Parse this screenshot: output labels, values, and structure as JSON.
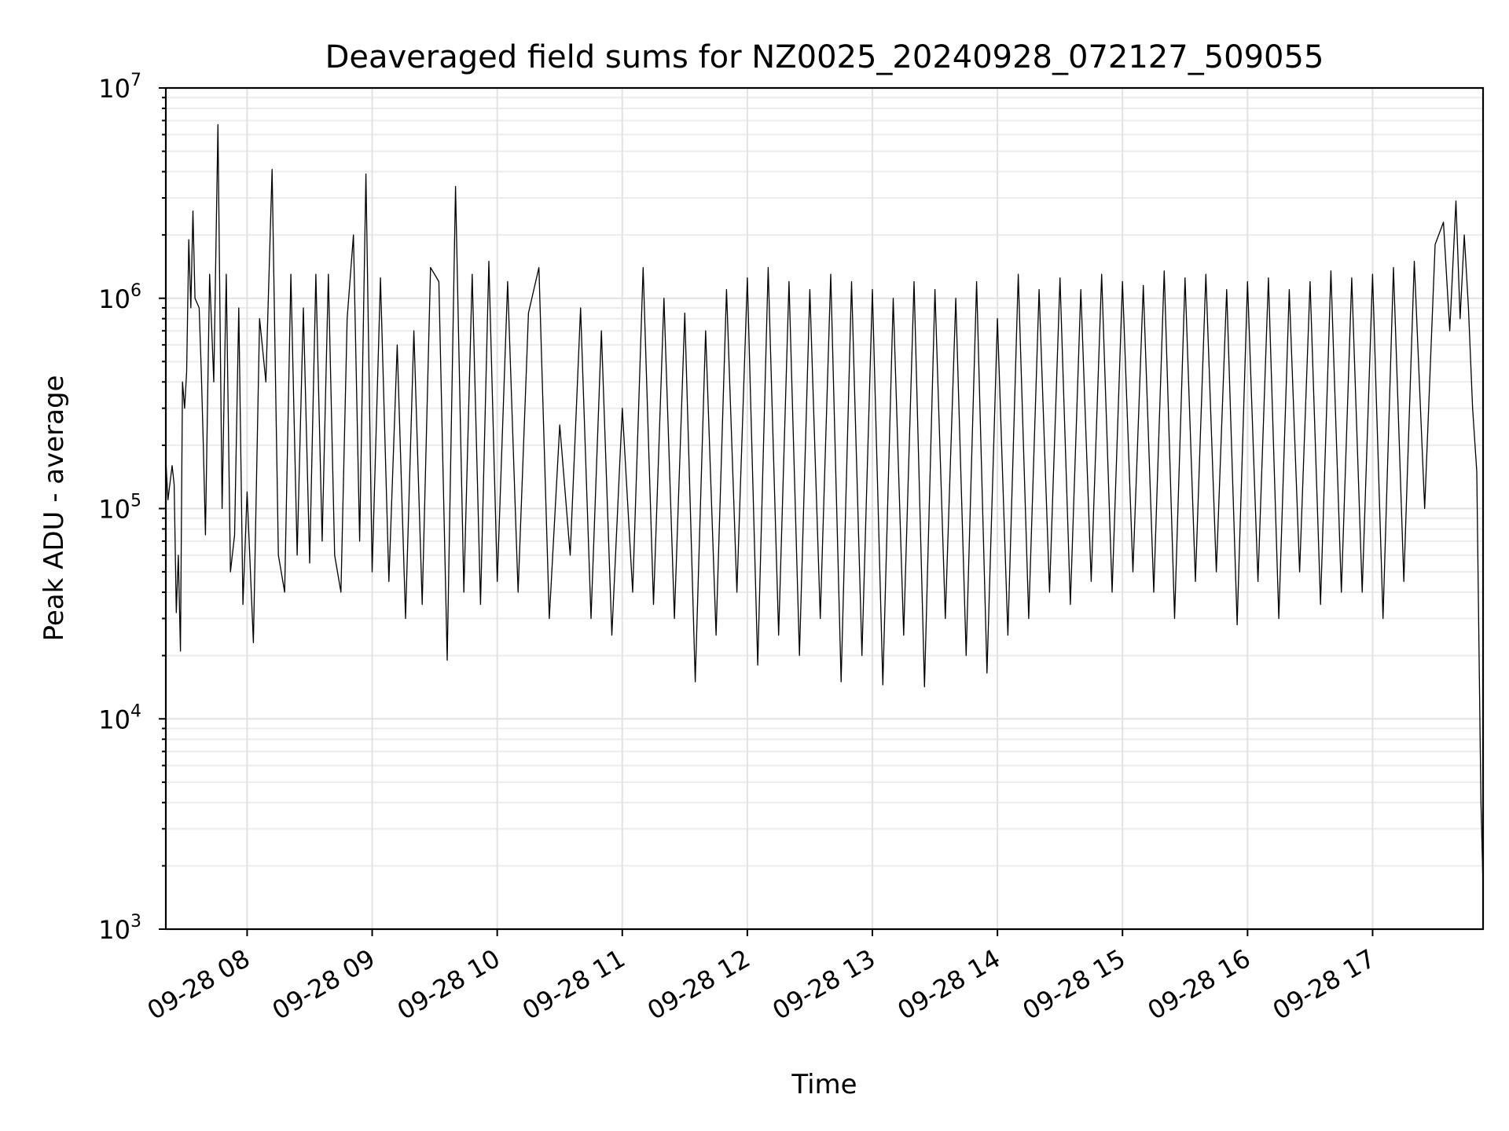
{
  "chart_data": {
    "type": "line",
    "title": "Deaveraged field sums for NZ0025_20240928_072127_509055",
    "xlabel": "Time",
    "ylabel": "Peak ADU - average",
    "yscale": "log",
    "ylim": [
      1000,
      10000000
    ],
    "xlim": [
      "2024-09-28 07:21",
      "2024-09-28 17:53"
    ],
    "grid": true,
    "legend": "none",
    "line_color": "#000000",
    "yticks": [
      {
        "value": 1000,
        "base": "10",
        "exp": "3"
      },
      {
        "value": 10000,
        "base": "10",
        "exp": "4"
      },
      {
        "value": 100000,
        "base": "10",
        "exp": "5"
      },
      {
        "value": 1000000,
        "base": "10",
        "exp": "6"
      },
      {
        "value": 10000000,
        "base": "10",
        "exp": "7"
      }
    ],
    "xticks": [
      {
        "time": "2024-09-28 08:00",
        "label": "09-28 08"
      },
      {
        "time": "2024-09-28 09:00",
        "label": "09-28 09"
      },
      {
        "time": "2024-09-28 10:00",
        "label": "09-28 10"
      },
      {
        "time": "2024-09-28 11:00",
        "label": "09-28 11"
      },
      {
        "time": "2024-09-28 12:00",
        "label": "09-28 12"
      },
      {
        "time": "2024-09-28 13:00",
        "label": "09-28 13"
      },
      {
        "time": "2024-09-28 14:00",
        "label": "09-28 14"
      },
      {
        "time": "2024-09-28 15:00",
        "label": "09-28 15"
      },
      {
        "time": "2024-09-28 16:00",
        "label": "09-28 16"
      },
      {
        "time": "2024-09-28 17:00",
        "label": "09-28 17"
      }
    ],
    "series": [
      {
        "x": [
          "2024-09-28 07:21",
          "2024-09-28 07:22",
          "2024-09-28 07:24",
          "2024-09-28 07:25",
          "2024-09-28 07:26",
          "2024-09-28 07:27",
          "2024-09-28 07:28",
          "2024-09-28 07:29",
          "2024-09-28 07:30",
          "2024-09-28 07:31",
          "2024-09-28 07:32",
          "2024-09-28 07:33",
          "2024-09-28 07:34",
          "2024-09-28 07:35",
          "2024-09-28 07:37",
          "2024-09-28 07:38",
          "2024-09-28 07:39",
          "2024-09-28 07:40",
          "2024-09-28 07:42",
          "2024-09-28 07:44",
          "2024-09-28 07:46",
          "2024-09-28 07:48",
          "2024-09-28 07:50",
          "2024-09-28 07:52",
          "2024-09-28 07:54",
          "2024-09-28 07:56",
          "2024-09-28 07:58",
          "2024-09-28 08:00",
          "2024-09-28 08:03",
          "2024-09-28 08:06",
          "2024-09-28 08:09",
          "2024-09-28 08:12",
          "2024-09-28 08:15",
          "2024-09-28 08:18",
          "2024-09-28 08:21",
          "2024-09-28 08:24",
          "2024-09-28 08:27",
          "2024-09-28 08:30",
          "2024-09-28 08:33",
          "2024-09-28 08:36",
          "2024-09-28 08:39",
          "2024-09-28 08:42",
          "2024-09-28 08:45",
          "2024-09-28 08:48",
          "2024-09-28 08:51",
          "2024-09-28 08:54",
          "2024-09-28 08:57",
          "2024-09-28 09:00",
          "2024-09-28 09:04",
          "2024-09-28 09:08",
          "2024-09-28 09:12",
          "2024-09-28 09:16",
          "2024-09-28 09:20",
          "2024-09-28 09:24",
          "2024-09-28 09:28",
          "2024-09-28 09:32",
          "2024-09-28 09:36",
          "2024-09-28 09:40",
          "2024-09-28 09:44",
          "2024-09-28 09:48",
          "2024-09-28 09:52",
          "2024-09-28 09:56",
          "2024-09-28 10:00",
          "2024-09-28 10:05",
          "2024-09-28 10:10",
          "2024-09-28 10:15",
          "2024-09-28 10:20",
          "2024-09-28 10:25",
          "2024-09-28 10:30",
          "2024-09-28 10:35",
          "2024-09-28 10:40",
          "2024-09-28 10:45",
          "2024-09-28 10:50",
          "2024-09-28 10:55",
          "2024-09-28 11:00",
          "2024-09-28 11:05",
          "2024-09-28 11:10",
          "2024-09-28 11:15",
          "2024-09-28 11:20",
          "2024-09-28 11:25",
          "2024-09-28 11:30",
          "2024-09-28 11:35",
          "2024-09-28 11:40",
          "2024-09-28 11:45",
          "2024-09-28 11:50",
          "2024-09-28 11:55",
          "2024-09-28 12:00",
          "2024-09-28 12:05",
          "2024-09-28 12:10",
          "2024-09-28 12:15",
          "2024-09-28 12:20",
          "2024-09-28 12:25",
          "2024-09-28 12:30",
          "2024-09-28 12:35",
          "2024-09-28 12:40",
          "2024-09-28 12:45",
          "2024-09-28 12:50",
          "2024-09-28 12:55",
          "2024-09-28 13:00",
          "2024-09-28 13:05",
          "2024-09-28 13:10",
          "2024-09-28 13:15",
          "2024-09-28 13:20",
          "2024-09-28 13:25",
          "2024-09-28 13:30",
          "2024-09-28 13:35",
          "2024-09-28 13:40",
          "2024-09-28 13:45",
          "2024-09-28 13:50",
          "2024-09-28 13:55",
          "2024-09-28 14:00",
          "2024-09-28 14:05",
          "2024-09-28 14:10",
          "2024-09-28 14:15",
          "2024-09-28 14:20",
          "2024-09-28 14:25",
          "2024-09-28 14:30",
          "2024-09-28 14:35",
          "2024-09-28 14:40",
          "2024-09-28 14:45",
          "2024-09-28 14:50",
          "2024-09-28 14:55",
          "2024-09-28 15:00",
          "2024-09-28 15:05",
          "2024-09-28 15:10",
          "2024-09-28 15:15",
          "2024-09-28 15:20",
          "2024-09-28 15:25",
          "2024-09-28 15:30",
          "2024-09-28 15:35",
          "2024-09-28 15:40",
          "2024-09-28 15:45",
          "2024-09-28 15:50",
          "2024-09-28 15:55",
          "2024-09-28 16:00",
          "2024-09-28 16:05",
          "2024-09-28 16:10",
          "2024-09-28 16:15",
          "2024-09-28 16:20",
          "2024-09-28 16:25",
          "2024-09-28 16:30",
          "2024-09-28 16:35",
          "2024-09-28 16:40",
          "2024-09-28 16:45",
          "2024-09-28 16:50",
          "2024-09-28 16:55",
          "2024-09-28 17:00",
          "2024-09-28 17:05",
          "2024-09-28 17:10",
          "2024-09-28 17:15",
          "2024-09-28 17:20",
          "2024-09-28 17:25",
          "2024-09-28 17:30",
          "2024-09-28 17:34",
          "2024-09-28 17:37",
          "2024-09-28 17:40",
          "2024-09-28 17:42",
          "2024-09-28 17:44",
          "2024-09-28 17:46",
          "2024-09-28 17:48",
          "2024-09-28 17:50",
          "2024-09-28 17:52",
          "2024-09-28 17:53"
        ],
        "values": [
          170000,
          110000,
          160000,
          130000,
          32000,
          60000,
          21000,
          400000,
          300000,
          450000,
          1900000,
          900000,
          2600000,
          1000000,
          900000,
          450000,
          200000,
          75000,
          1300000,
          400000,
          6700000,
          100000,
          1300000,
          50000,
          75000,
          900000,
          35000,
          120000,
          23000,
          800000,
          400000,
          4100000,
          60000,
          40000,
          1300000,
          60000,
          900000,
          55000,
          1300000,
          70000,
          1300000,
          60000,
          40000,
          800000,
          2000000,
          70000,
          3900000,
          50000,
          1250000,
          45000,
          600000,
          30000,
          700000,
          35000,
          1400000,
          1200000,
          19000,
          3400000,
          40000,
          1300000,
          35000,
          1500000,
          45000,
          1200000,
          40000,
          850000,
          1400000,
          30000,
          250000,
          60000,
          900000,
          30000,
          700000,
          25000,
          300000,
          40000,
          1400000,
          35000,
          1000000,
          30000,
          850000,
          15000,
          700000,
          25000,
          1100000,
          40000,
          1250000,
          18000,
          1400000,
          25000,
          1200000,
          20000,
          1100000,
          30000,
          1300000,
          15000,
          1200000,
          20000,
          1100000,
          14500,
          1000000,
          25000,
          1200000,
          14200,
          1100000,
          30000,
          1000000,
          20000,
          1200000,
          16500,
          800000,
          25000,
          1300000,
          30000,
          1100000,
          40000,
          1250000,
          35000,
          1100000,
          45000,
          1300000,
          40000,
          1200000,
          50000,
          1150000,
          40000,
          1350000,
          30000,
          1250000,
          45000,
          1300000,
          50000,
          1100000,
          28000,
          1200000,
          45000,
          1250000,
          30000,
          1100000,
          50000,
          1200000,
          35000,
          1350000,
          40000,
          1250000,
          40000,
          1300000,
          30000,
          1400000,
          45000,
          1500000,
          100000,
          1800000,
          2300000,
          700000,
          2900000,
          800000,
          2000000,
          900000,
          300000,
          150000,
          4000,
          1600
        ]
      }
    ]
  }
}
